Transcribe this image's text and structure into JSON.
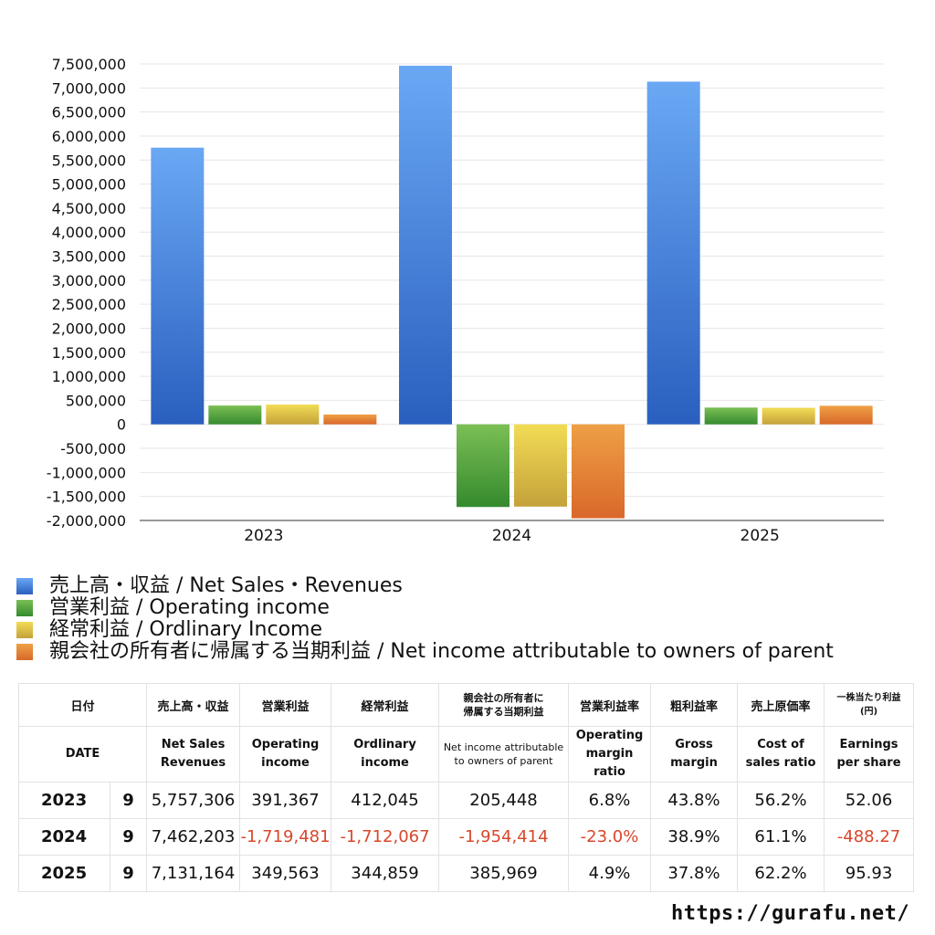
{
  "chart_data": {
    "type": "bar",
    "categories": [
      "2023",
      "2024",
      "2025"
    ],
    "ylim": [
      -2000000,
      7500000
    ],
    "ytick_step": 500000,
    "grid": true,
    "series": [
      {
        "name": "売上高・収益 / Net Sales・Revenues",
        "values": [
          5757306,
          7462203,
          7131164
        ],
        "color_top": "#6aa8f4",
        "color_bottom": "#2a5fbf"
      },
      {
        "name": "営業利益 / Operating income",
        "values": [
          391367,
          -1719481,
          349563
        ],
        "color_top": "#7bbf55",
        "color_bottom": "#358a2e"
      },
      {
        "name": "経常利益 / Ordlinary Income",
        "values": [
          412045,
          -1712067,
          344859
        ],
        "color_top": "#f2dc55",
        "color_bottom": "#c4a23a"
      },
      {
        "name": "親会社の所有者に帰属する当期利益 / Net income attributable to owners of parent",
        "values": [
          205448,
          -1954414,
          385969
        ],
        "color_top": "#eea045",
        "color_bottom": "#d9682a"
      }
    ]
  },
  "table": {
    "header_jp": {
      "date": "日付",
      "sales": "売上高・収益",
      "op": "営業利益",
      "ord": "経常利益",
      "net_1": "親会社の所有者に",
      "net_2": "帰属する当期利益",
      "op_margin": "営業利益率",
      "gross": "粗利益率",
      "cost": "売上原価率",
      "eps_1": "一株当たり利益",
      "eps_2": "(円)"
    },
    "header_en": {
      "date": "DATE",
      "sales_1": "Net Sales",
      "sales_2": "Revenues",
      "op_1": "Operating",
      "op_2": "income",
      "ord_1": "Ordlinary",
      "ord_2": "income",
      "net_1": "Net income attributable",
      "net_2": "to owners of parent",
      "opm_1": "Operating",
      "opm_2": "margin",
      "opm_3": "ratio",
      "gross_1": "Gross",
      "gross_2": "margin",
      "cost_1": "Cost of",
      "cost_2": "sales ratio",
      "eps_1": "Earnings",
      "eps_2": "per share"
    },
    "rows": [
      {
        "year": "2023",
        "month": "9",
        "sales": "5,757,306",
        "op": "391,367",
        "ord": "412,045",
        "net": "205,448",
        "opm": "6.8%",
        "gross": "43.8%",
        "cost": "56.2%",
        "eps": "52.06"
      },
      {
        "year": "2024",
        "month": "9",
        "sales": "7,462,203",
        "op": "-1,719,481",
        "ord": "-1,712,067",
        "net": "-1,954,414",
        "opm": "-23.0%",
        "gross": "38.9%",
        "cost": "61.1%",
        "eps": "-488.27"
      },
      {
        "year": "2025",
        "month": "9",
        "sales": "7,131,164",
        "op": "349,563",
        "ord": "344,859",
        "net": "385,969",
        "opm": "4.9%",
        "gross": "37.8%",
        "cost": "62.2%",
        "eps": "95.93"
      }
    ]
  },
  "footer": {
    "site": "https://gurafu.net/"
  }
}
